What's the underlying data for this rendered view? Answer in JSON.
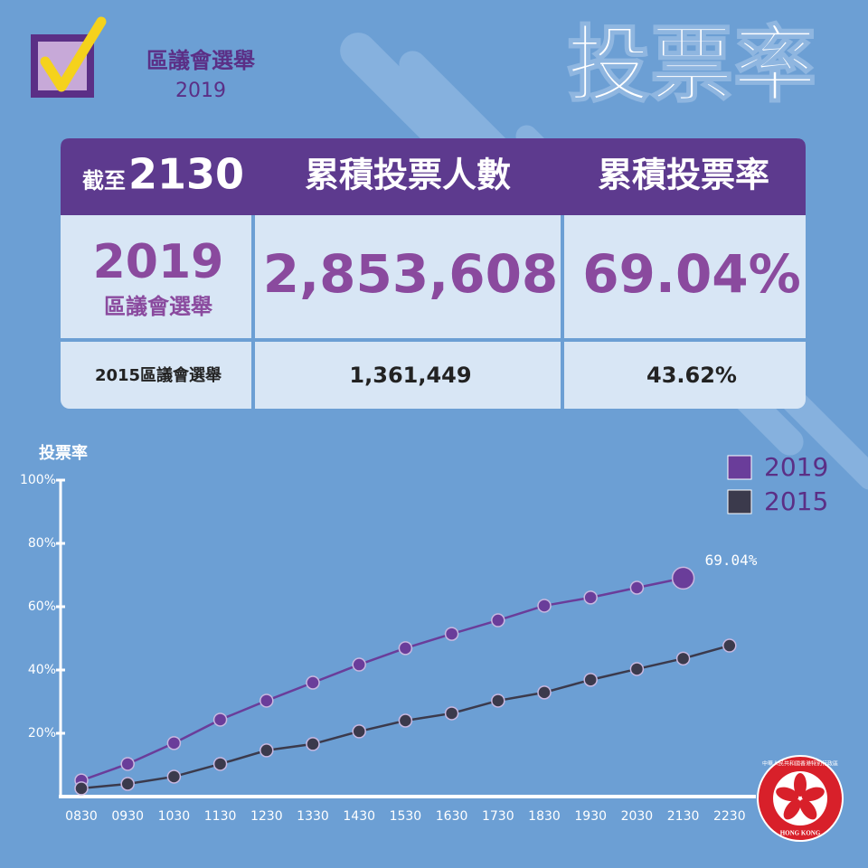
{
  "header": {
    "logo_title": "區議會選舉",
    "logo_year": "2019",
    "title": "投票率"
  },
  "table": {
    "header": {
      "as_of": "截至",
      "time": "2130",
      "col2": "累積投票人數",
      "col3": "累積投票率"
    },
    "current": {
      "year": "2019",
      "name": "區議會選舉",
      "votes": "2,853,608",
      "rate": "69.04%"
    },
    "previous": {
      "name": "2015區議會選舉",
      "votes": "1,361,449",
      "rate": "43.62%"
    }
  },
  "chart_data": {
    "type": "line",
    "y_label": "投票率",
    "categories": [
      "0830",
      "0930",
      "1030",
      "1130",
      "1230",
      "1330",
      "1430",
      "1530",
      "1630",
      "1730",
      "1830",
      "1930",
      "2030",
      "2130",
      "2230"
    ],
    "series": [
      {
        "name": "2019",
        "color": "#6a3d9a",
        "values": [
          5.1,
          10.3,
          16.9,
          24.3,
          30.3,
          36.0,
          41.7,
          46.9,
          51.4,
          55.7,
          60.3,
          62.9,
          66.0,
          69.04,
          null
        ],
        "value_labels": [
          null,
          null,
          null,
          null,
          null,
          null,
          null,
          null,
          null,
          null,
          null,
          null,
          null,
          "69.04%",
          null
        ]
      },
      {
        "name": "2015",
        "color": "#3b3a4c",
        "values": [
          2.6,
          4.0,
          6.3,
          10.3,
          14.6,
          16.6,
          20.6,
          24.0,
          26.3,
          30.3,
          32.9,
          36.9,
          40.3,
          43.62,
          47.7
        ]
      }
    ],
    "ylim": [
      0,
      100
    ],
    "yticks": [
      {
        "value": 20,
        "label": "20%"
      },
      {
        "value": 40,
        "label": "40%"
      },
      {
        "value": 60,
        "label": "60%"
      },
      {
        "value": 80,
        "label": "80%"
      },
      {
        "value": 100,
        "label": "100%"
      }
    ],
    "legend": "top-right",
    "grid": false
  },
  "emblem": {
    "ring_text": "中華人民共和國香港特別行政區",
    "name": "HONG KONG"
  }
}
